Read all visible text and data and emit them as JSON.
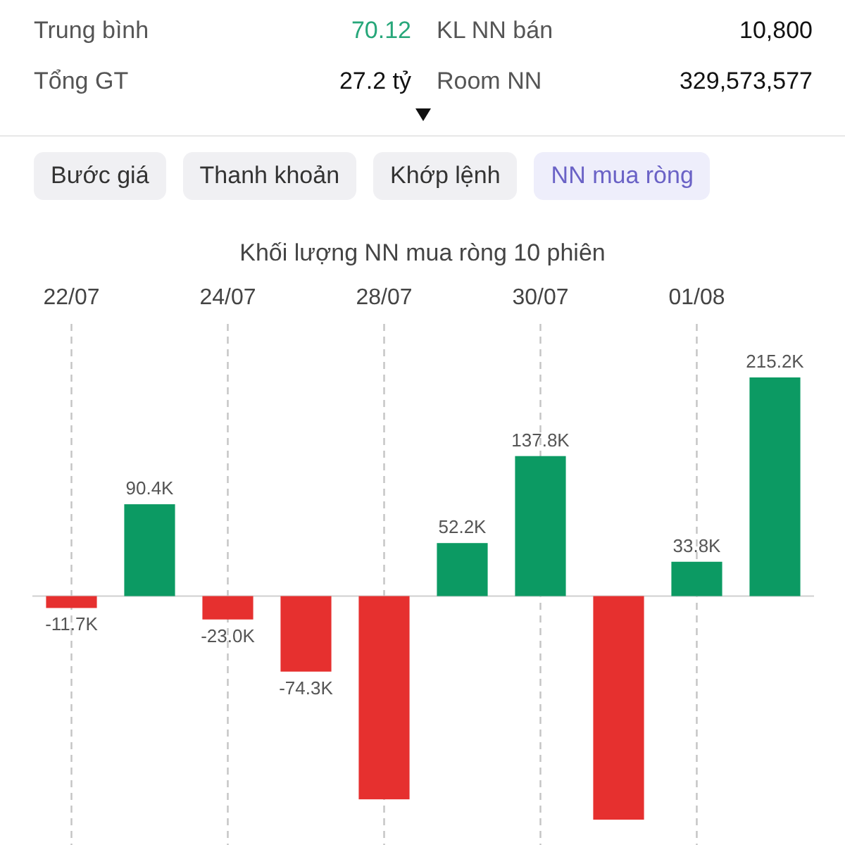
{
  "chart_data": [
    {
      "type": "other",
      "annotations": [
        "Trung bình",
        "70.12",
        "KL NN bán",
        "10,800",
        "Tổng GT",
        "27.2 tỷ",
        "Room NN",
        "329,573,577",
        "Bước giá",
        "Thanh khoản",
        "Khớp lệnh",
        "NN mua ròng"
      ]
    },
    {
      "type": "bar",
      "title": "Khối lượng NN mua ròng 10 phiên",
      "categories": [
        "22/07",
        null,
        "24/07",
        null,
        "28/07",
        null,
        "30/07",
        null,
        "01/08",
        null
      ],
      "values": [
        -11.7,
        90.4,
        -23.0,
        -74.3,
        -200,
        52.2,
        137.8,
        -220,
        33.8,
        215.2
      ],
      "colors": [
        "#e6302f",
        "#0c9a63",
        "#e6302f",
        "#e6302f",
        "#e6302f",
        "#0c9a63",
        "#0c9a63",
        "#e6302f",
        "#0c9a63",
        "#0c9a63"
      ],
      "value_labels": [
        "-11.7K",
        "90.4K",
        "-23.0K",
        "-74.3K",
        null,
        "52.2K",
        "137.8K",
        null,
        "33.8K",
        "215.2K"
      ],
      "grid": "x"
    }
  ]
}
